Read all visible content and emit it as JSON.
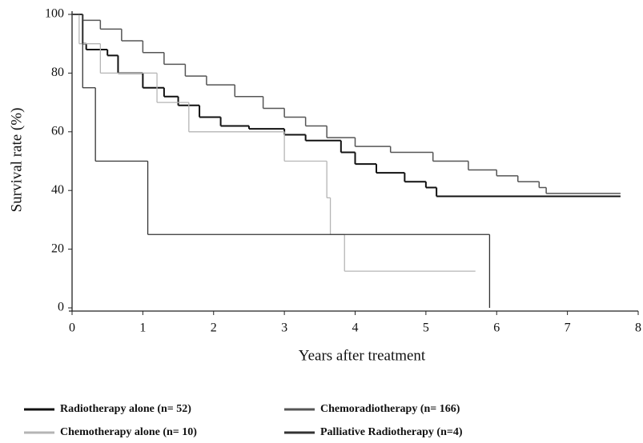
{
  "chart_data": {
    "type": "step",
    "xlabel": "Years after treatment",
    "ylabel": "Survival rate (%)",
    "xlim": [
      0,
      8
    ],
    "ylim": [
      0,
      100
    ],
    "xticks": [
      0,
      1,
      2,
      3,
      4,
      5,
      6,
      7,
      8
    ],
    "yticks": [
      0,
      20,
      40,
      60,
      80,
      100
    ],
    "series": [
      {
        "name": "Radiotherapy alone (n= 52)",
        "color": "#111111",
        "width": 2,
        "x": [
          0,
          0.15,
          0.2,
          0.5,
          0.65,
          1.0,
          1.3,
          1.5,
          1.8,
          2.1,
          2.5,
          3.0,
          3.3,
          3.8,
          4.0,
          4.3,
          4.7,
          5.0,
          5.15,
          7.75
        ],
        "values": [
          100,
          90,
          88,
          86,
          80,
          75,
          72,
          69,
          65,
          62,
          61,
          59,
          57,
          53,
          49,
          46,
          43,
          41,
          38,
          38
        ]
      },
      {
        "name": "Chemoradiotherapy (n= 166)",
        "color": "#555555",
        "width": 1.5,
        "x": [
          0,
          0.15,
          0.4,
          0.7,
          1.0,
          1.3,
          1.6,
          1.9,
          2.3,
          2.7,
          3.0,
          3.3,
          3.6,
          4.0,
          4.5,
          5.1,
          5.6,
          6.0,
          6.3,
          6.6,
          6.7,
          7.75
        ],
        "values": [
          100,
          98,
          95,
          91,
          87,
          83,
          79,
          76,
          72,
          68,
          65,
          62,
          58,
          55,
          53,
          50,
          47,
          45,
          43,
          41,
          39,
          39
        ]
      },
      {
        "name": "Chemotherapy alone (n= 10)",
        "color": "#b5b5b5",
        "width": 1.3,
        "x": [
          0,
          0.1,
          0.4,
          1.2,
          1.65,
          3.0,
          3.6,
          3.65,
          3.85,
          5.7
        ],
        "values": [
          100,
          90,
          80,
          70,
          60,
          50,
          37.5,
          25,
          12.5,
          12.5
        ]
      },
      {
        "name": "Palliative Radiotherapy (n=4)",
        "color": "#333333",
        "width": 1.3,
        "x": [
          0,
          0.15,
          0.33,
          1.07,
          5.9
        ],
        "values": [
          100,
          75,
          50,
          25,
          0
        ]
      }
    ]
  }
}
